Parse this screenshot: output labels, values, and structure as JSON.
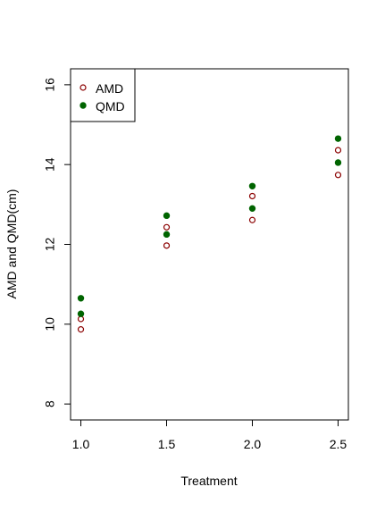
{
  "chart_data": {
    "type": "scatter",
    "title": "",
    "xlabel": "Treatment",
    "ylabel": "AMD and QMD(cm)",
    "xlim": [
      0.94,
      2.56
    ],
    "ylim": [
      7.6,
      16.4
    ],
    "x_ticks": [
      1.0,
      1.5,
      2.0,
      2.5
    ],
    "x_tick_labels": [
      "1.0",
      "1.5",
      "2.0",
      "2.5"
    ],
    "y_ticks": [
      8,
      10,
      12,
      14,
      16
    ],
    "y_tick_labels": [
      "8",
      "10",
      "12",
      "14",
      "16"
    ],
    "grid": false,
    "legend_position": "top-left",
    "series": [
      {
        "name": "AMD",
        "marker": "open-circle",
        "color": "#8b0000",
        "points": [
          {
            "x": 1.0,
            "y": 9.87
          },
          {
            "x": 1.0,
            "y": 10.13
          },
          {
            "x": 1.5,
            "y": 11.97
          },
          {
            "x": 1.5,
            "y": 12.43
          },
          {
            "x": 2.0,
            "y": 12.61
          },
          {
            "x": 2.0,
            "y": 13.21
          },
          {
            "x": 2.5,
            "y": 13.74
          },
          {
            "x": 2.5,
            "y": 14.36
          }
        ]
      },
      {
        "name": "QMD",
        "marker": "filled-circle",
        "color": "#006400",
        "points": [
          {
            "x": 1.0,
            "y": 10.26
          },
          {
            "x": 1.0,
            "y": 10.65
          },
          {
            "x": 1.5,
            "y": 12.25
          },
          {
            "x": 1.5,
            "y": 12.72
          },
          {
            "x": 2.0,
            "y": 12.9
          },
          {
            "x": 2.0,
            "y": 13.46
          },
          {
            "x": 2.5,
            "y": 14.05
          },
          {
            "x": 2.5,
            "y": 14.65
          }
        ]
      }
    ]
  }
}
